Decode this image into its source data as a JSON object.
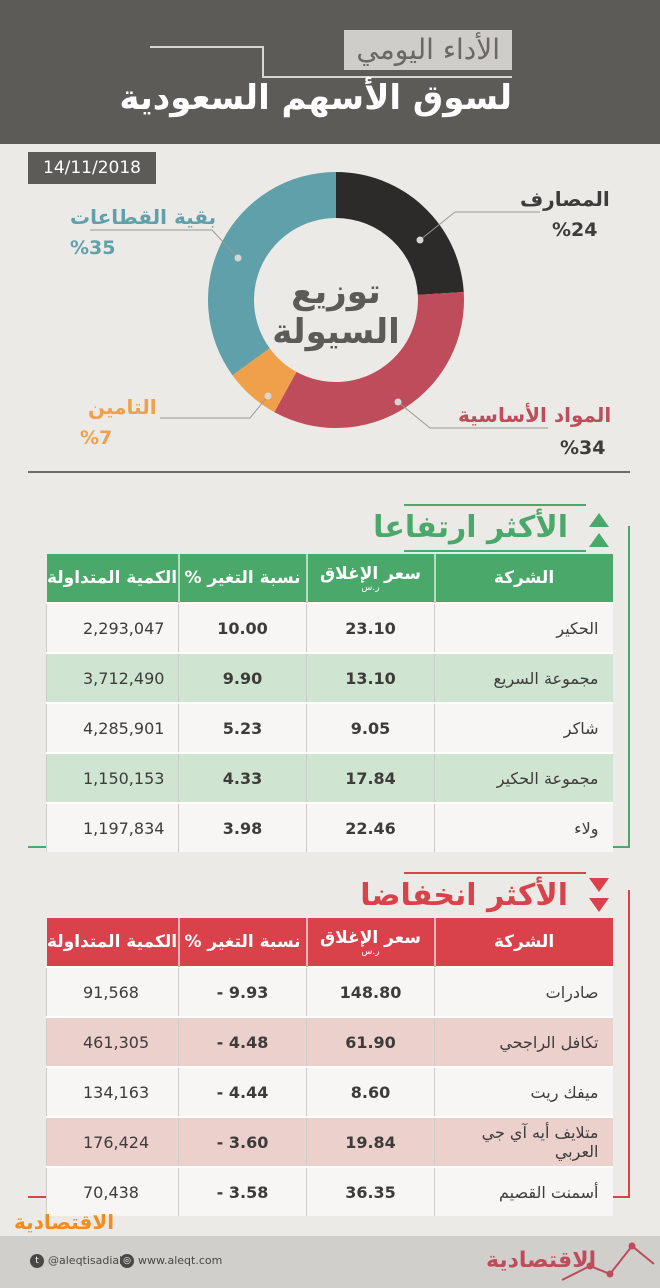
{
  "header": {
    "subtitle": "الأداء اليومي",
    "title": "لسوق الأسهم السعودية"
  },
  "date": "14/11/2018",
  "chart_data": {
    "type": "pie",
    "title": "توزيع السيولة",
    "title_line1": "توزيع",
    "title_line2": "السيولة",
    "slices": [
      {
        "label": "المصارف",
        "value": 24,
        "pct_text": "%24",
        "color": "#2c2b2a"
      },
      {
        "label": "المواد الأساسية",
        "value": 34,
        "pct_text": "%34",
        "color": "#be4c5b"
      },
      {
        "label": "التامين",
        "value": 7,
        "pct_text": "%7",
        "color": "#f0a04b"
      },
      {
        "label": "بقية القطاعات",
        "value": 35,
        "pct_text": "%35",
        "color": "#5fa0ab"
      }
    ]
  },
  "gainers": {
    "title": "الأكثر ارتفاعا",
    "color": "#4aa86a",
    "headers": {
      "company": "الشركة",
      "close": "سعر الإغلاق",
      "close_unit": "ر.س",
      "change": "نسبة التغير %",
      "volume": "الكمية المتداولة"
    },
    "rows": [
      {
        "company": "الحكير",
        "close": "23.10",
        "change": "10.00",
        "volume": "2,293,047"
      },
      {
        "company": "مجموعة السريع",
        "close": "13.10",
        "change": "9.90",
        "volume": "3,712,490"
      },
      {
        "company": "شاكر",
        "close": "9.05",
        "change": "5.23",
        "volume": "4,285,901"
      },
      {
        "company": "مجموعة الحكير",
        "close": "17.84",
        "change": "4.33",
        "volume": "1,150,153"
      },
      {
        "company": "ولاء",
        "close": "22.46",
        "change": "3.98",
        "volume": "1,197,834"
      }
    ]
  },
  "losers": {
    "title": "الأكثر انخفاضا",
    "color": "#d9414b",
    "headers": {
      "company": "الشركة",
      "close": "سعر الإغلاق",
      "close_unit": "ر.س",
      "change": "نسبة التغير %",
      "volume": "الكمية المتداولة"
    },
    "rows": [
      {
        "company": "صادرات",
        "close": "148.80",
        "change": "9.93 -",
        "volume": "91,568"
      },
      {
        "company": "تكافل الراجحي",
        "close": "61.90",
        "change": "4.48 -",
        "volume": "461,305"
      },
      {
        "company": "ميفك ريت",
        "close": "8.60",
        "change": "4.44 -",
        "volume": "134,163"
      },
      {
        "company": "متلايف أيه آي جي العربي",
        "close": "19.84",
        "change": "3.60 -",
        "volume": "176,424"
      },
      {
        "company": "أسمنت القصيم",
        "close": "36.35",
        "change": "3.58 -",
        "volume": "70,438"
      }
    ]
  },
  "footer": {
    "brand": "الاقتصادية",
    "twitter": "@aleqtisadiah",
    "website": "www.aleqt.com",
    "twitter_icon": "twitter-icon",
    "globe_icon": "globe-icon"
  }
}
